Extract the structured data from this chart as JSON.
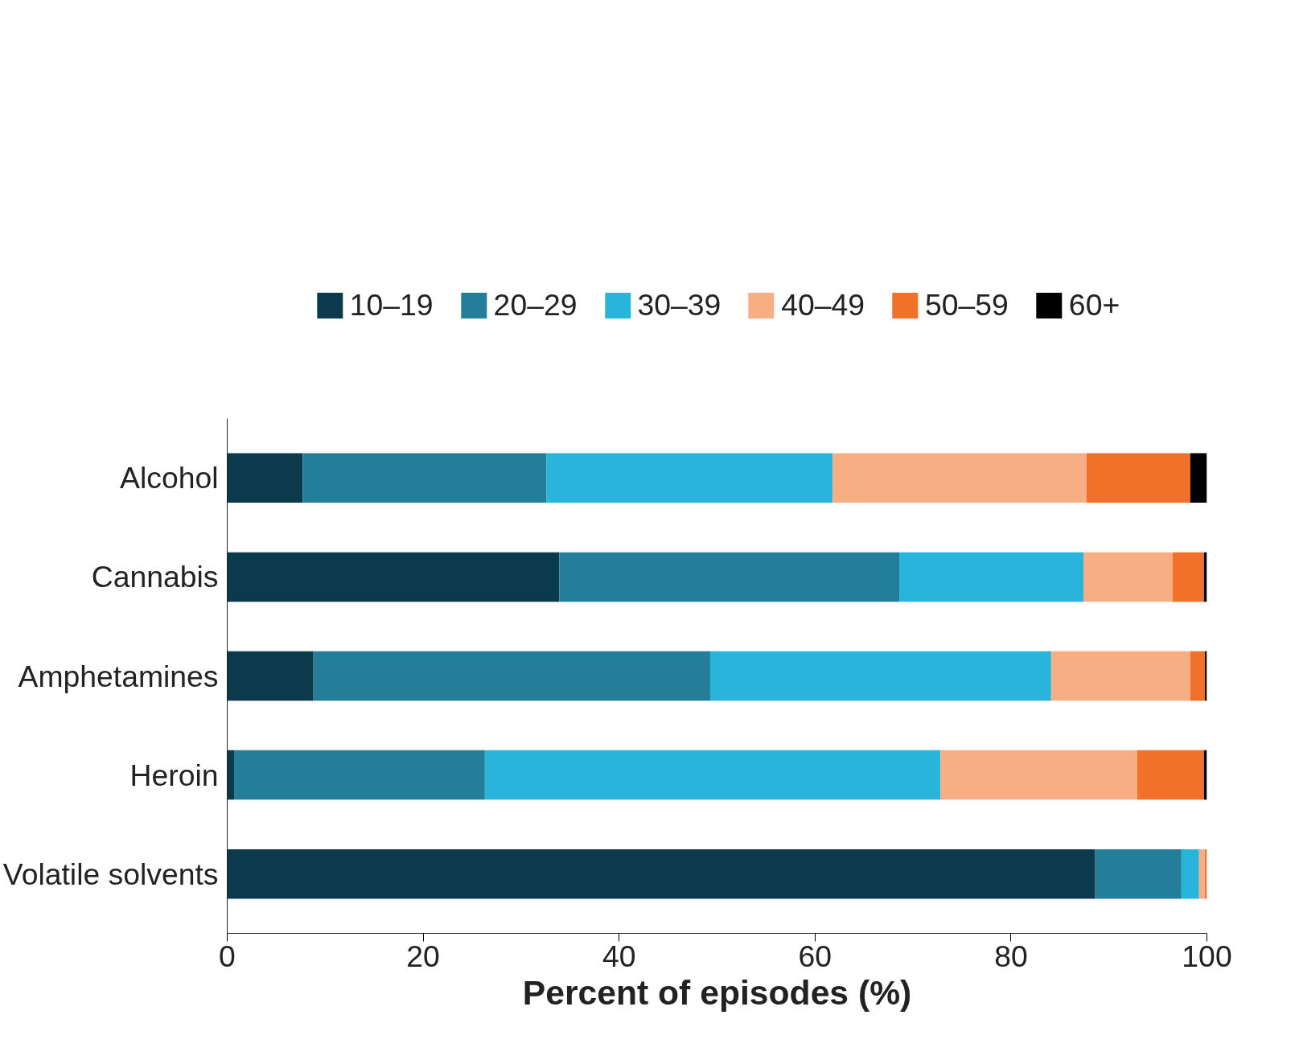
{
  "chart_data": {
    "type": "bar",
    "orientation": "horizontal",
    "stacked": true,
    "xlabel": "Percent of episodes (%)",
    "categories": [
      "Alcohol",
      "Cannabis",
      "Amphetamines",
      "Heroin",
      "Volatile solvents"
    ],
    "series": [
      {
        "name": "10–19",
        "color": "#0a3a4c",
        "values": [
          7.7,
          33.9,
          8.8,
          0.7,
          88.6
        ]
      },
      {
        "name": "20–29",
        "color": "#237f99",
        "values": [
          24.9,
          34.7,
          40.5,
          25.6,
          8.8
        ]
      },
      {
        "name": "30–39",
        "color": "#29b4dc",
        "values": [
          29.2,
          18.8,
          34.8,
          46.5,
          1.8
        ]
      },
      {
        "name": "40–49",
        "color": "#f7ae82",
        "values": [
          25.9,
          9.1,
          14.2,
          20.1,
          0.6
        ]
      },
      {
        "name": "50–59",
        "color": "#f1702a",
        "values": [
          10.6,
          3.2,
          1.5,
          6.8,
          0.2
        ]
      },
      {
        "name": "60+",
        "color": "#000000",
        "values": [
          1.7,
          0.3,
          0.2,
          0.3,
          0.0
        ]
      }
    ],
    "xlim": [
      0,
      100
    ],
    "xticks": [
      0,
      20,
      40,
      60,
      80,
      100
    ],
    "grid": false,
    "legend": "top"
  }
}
